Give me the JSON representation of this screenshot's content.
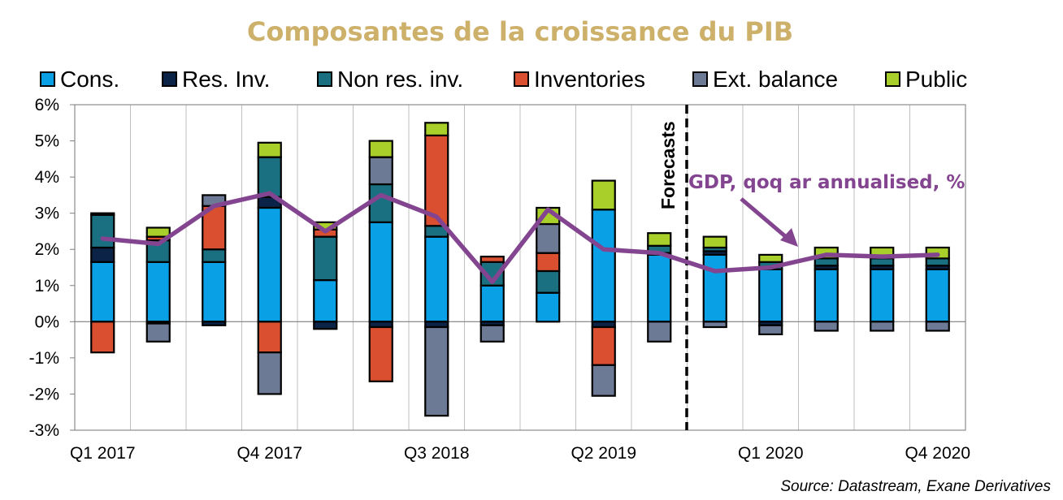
{
  "title": "Composantes de la croissance du PIB",
  "source": "Source: Datastream,  Exane Derivatives",
  "chart_data": {
    "type": "bar",
    "stacked": true,
    "title": "Composantes de la croissance du PIB",
    "xlabel": "",
    "ylabel": "",
    "ylim": [
      -3,
      6
    ],
    "yticks": [
      "-3%",
      "-2%",
      "-1%",
      "0%",
      "1%",
      "2%",
      "3%",
      "4%",
      "5%",
      "6%"
    ],
    "grid": "vertical",
    "legend_position": "top",
    "categories": [
      "Q1 2017",
      "Q2 2017",
      "Q3 2017",
      "Q4 2017",
      "Q1 2018",
      "Q2 2018",
      "Q3 2018",
      "Q4 2018",
      "Q1 2019",
      "Q2 2019",
      "Q3 2019",
      "Q4 2019",
      "Q1 2020",
      "Q2 2020",
      "Q3 2020",
      "Q4 2020"
    ],
    "x_tick_labels": [
      "Q1 2017",
      "",
      "",
      "Q4 2017",
      "",
      "",
      "Q3 2018",
      "",
      "",
      "Q2 2019",
      "",
      "",
      "Q1 2020",
      "",
      "",
      "Q4 2020"
    ],
    "forecast_label": "Forecasts",
    "forecast_start_index": 11,
    "series": [
      {
        "name": "Cons.",
        "color": "#0aa0e6",
        "values": [
          1.65,
          1.65,
          1.65,
          3.15,
          1.15,
          2.75,
          2.35,
          1.0,
          0.8,
          3.1,
          1.85,
          1.85,
          1.45,
          1.45,
          1.45,
          1.45
        ]
      },
      {
        "name": "Res. Inv.",
        "color": "#0b2346",
        "values": [
          0.4,
          -0.05,
          -0.1,
          0.3,
          -0.2,
          -0.15,
          -0.15,
          -0.1,
          0.0,
          -0.15,
          0.05,
          0.1,
          -0.1,
          0.1,
          0.1,
          0.1
        ]
      },
      {
        "name": "Non res. inv.",
        "color": "#1a7080",
        "values": [
          0.9,
          0.6,
          0.35,
          1.1,
          1.2,
          1.05,
          0.3,
          0.65,
          0.6,
          0.0,
          0.2,
          0.1,
          0.2,
          0.2,
          0.2,
          0.2
        ]
      },
      {
        "name": "Inventories",
        "color": "#d94f2f",
        "values": [
          -0.85,
          0.1,
          1.2,
          -0.85,
          0.2,
          -1.5,
          2.5,
          0.15,
          0.5,
          -1.05,
          0.0,
          0.0,
          0.0,
          0.0,
          0.0,
          0.0
        ]
      },
      {
        "name": "Ext. balance",
        "color": "#6c7a96",
        "values": [
          0.0,
          -0.5,
          0.3,
          -1.15,
          0.0,
          0.75,
          -2.45,
          -0.45,
          0.8,
          -0.85,
          -0.55,
          -0.15,
          -0.25,
          -0.25,
          -0.25,
          -0.25
        ]
      },
      {
        "name": "Public",
        "color": "#a9cf2a",
        "values": [
          0.05,
          0.25,
          0.0,
          0.4,
          0.2,
          0.45,
          0.35,
          0.0,
          0.45,
          0.8,
          0.35,
          0.3,
          0.2,
          0.3,
          0.3,
          0.3
        ]
      }
    ],
    "line": {
      "name": "GDP, qoq ar annualised, %",
      "color": "#83458f",
      "values": [
        2.3,
        2.15,
        3.2,
        3.55,
        2.5,
        3.5,
        2.9,
        1.1,
        3.1,
        2.0,
        1.9,
        1.4,
        1.5,
        1.85,
        1.8,
        1.85
      ]
    }
  }
}
